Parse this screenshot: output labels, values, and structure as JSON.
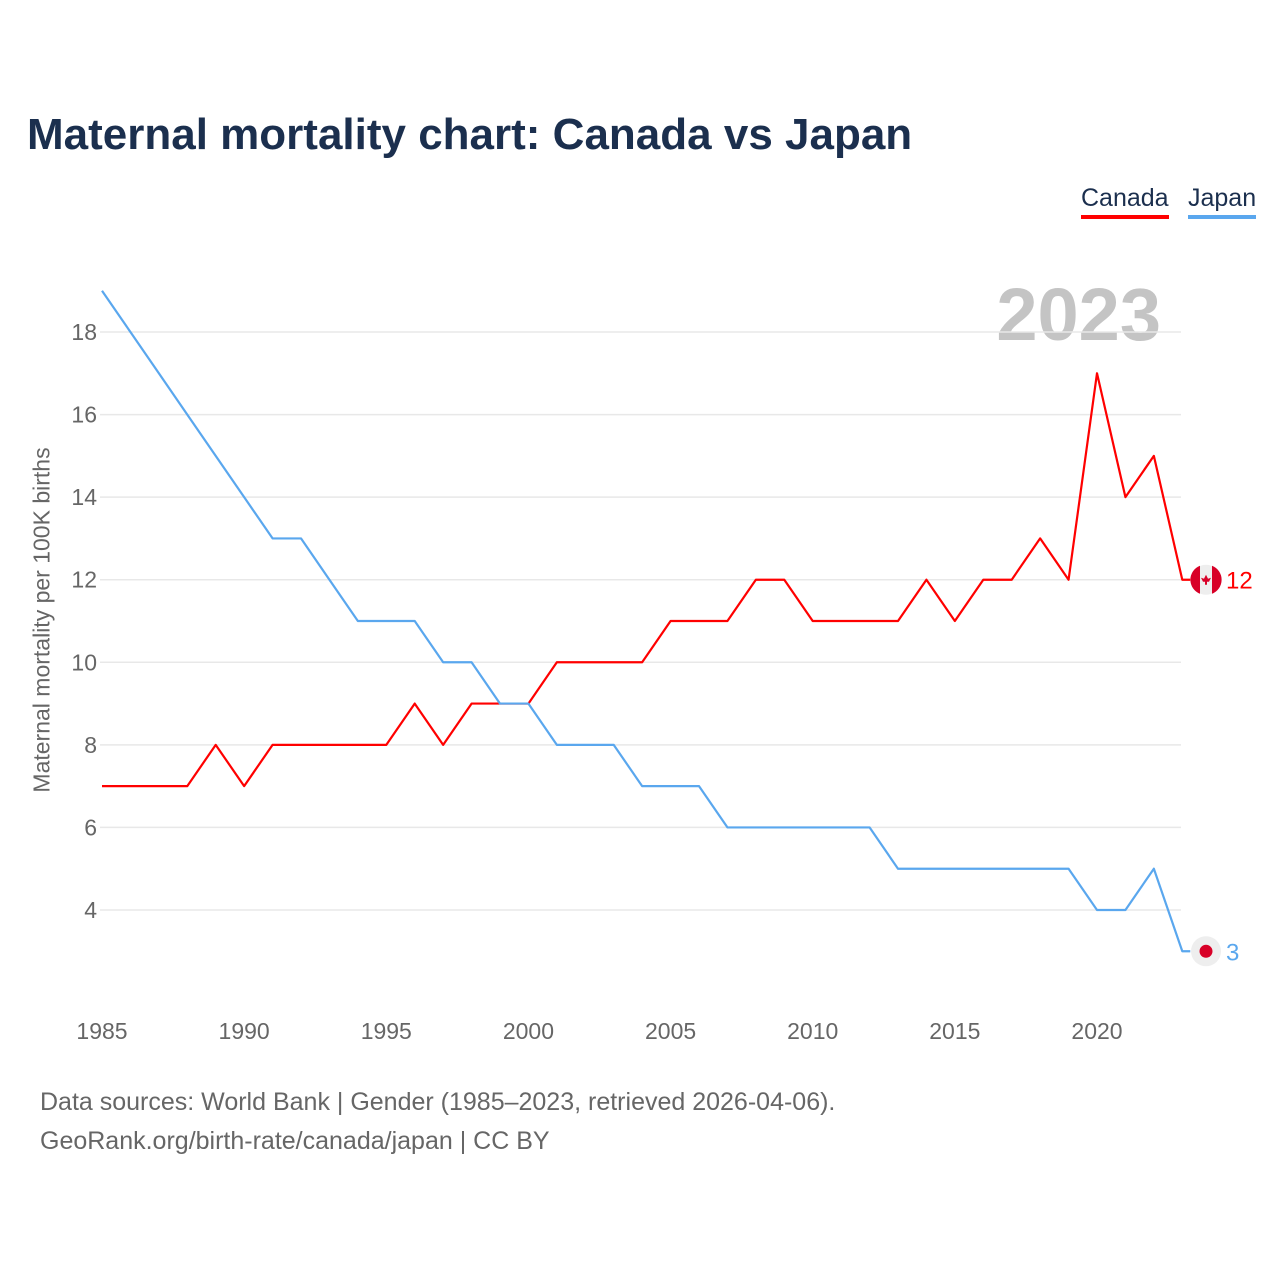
{
  "title": "Maternal mortality chart: Canada vs Japan",
  "year_label": "2023",
  "source_line1": "Data sources: World Bank | Gender (1985–2023, retrieved 2026-04-06).",
  "source_line2": "GeoRank.org/birth-rate/canada/japan | CC BY",
  "chart_data": {
    "type": "line",
    "title": "Maternal mortality chart: Canada vs Japan",
    "xlabel": "",
    "ylabel": "Maternal mortality per 100K births",
    "xlim": [
      1985,
      2023
    ],
    "ylim": [
      2,
      19
    ],
    "x_ticks": [
      1985,
      1990,
      1995,
      2000,
      2005,
      2010,
      2015,
      2020
    ],
    "y_ticks": [
      4,
      6,
      8,
      10,
      12,
      14,
      16,
      18
    ],
    "grid": true,
    "legend_position": "top-right",
    "x": [
      1985,
      1986,
      1987,
      1988,
      1989,
      1990,
      1991,
      1992,
      1993,
      1994,
      1995,
      1996,
      1997,
      1998,
      1999,
      2000,
      2001,
      2002,
      2003,
      2004,
      2005,
      2006,
      2007,
      2008,
      2009,
      2010,
      2011,
      2012,
      2013,
      2014,
      2015,
      2016,
      2017,
      2018,
      2019,
      2020,
      2021,
      2022,
      2023
    ],
    "series": [
      {
        "name": "Canada",
        "color": "#ff0000",
        "end_label": "12",
        "values": [
          7,
          7,
          7,
          7,
          8,
          7,
          8,
          8,
          8,
          8,
          8,
          9,
          8,
          9,
          9,
          9,
          10,
          10,
          10,
          10,
          11,
          11,
          11,
          12,
          12,
          11,
          11,
          11,
          11,
          12,
          11,
          12,
          12,
          13,
          12,
          17,
          14,
          15,
          12
        ]
      },
      {
        "name": "Japan",
        "color": "#5aa7ee",
        "end_label": "3",
        "values": [
          19,
          18,
          17,
          16,
          15,
          14,
          13,
          13,
          12,
          11,
          11,
          11,
          10,
          10,
          9,
          9,
          8,
          8,
          8,
          7,
          7,
          7,
          6,
          6,
          6,
          6,
          6,
          6,
          5,
          5,
          5,
          5,
          5,
          5,
          5,
          4,
          4,
          5,
          3
        ]
      }
    ]
  }
}
